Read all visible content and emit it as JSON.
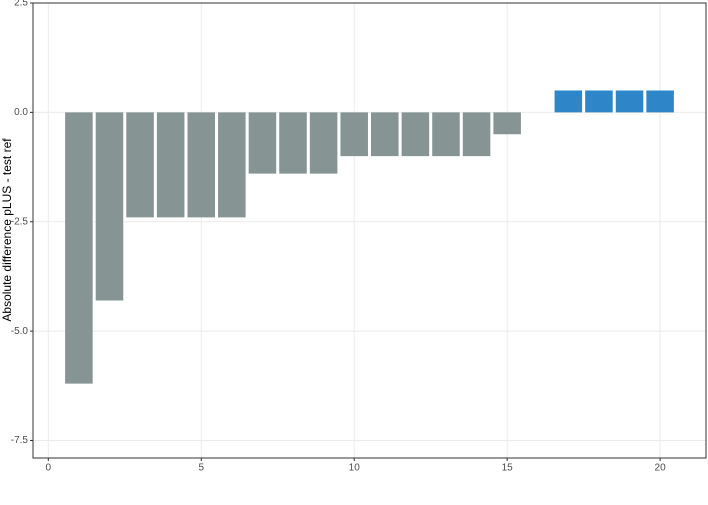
{
  "chart_data": {
    "type": "bar",
    "y_label": "Absolute difference pLUS - test ref",
    "x": [
      1,
      2,
      3,
      4,
      5,
      6,
      7,
      8,
      9,
      10,
      11,
      12,
      13,
      14,
      15,
      16,
      17,
      18,
      19,
      20
    ],
    "values": [
      -6.2,
      -4.3,
      -2.4,
      -2.4,
      -2.4,
      -2.4,
      -1.4,
      -1.4,
      -1.4,
      -1.0,
      -1.0,
      -1.0,
      -1.0,
      -1.0,
      -0.5,
      null,
      0.5,
      0.5,
      0.5,
      0.5
    ],
    "colors": [
      "#879494",
      "#879494",
      "#879494",
      "#879494",
      "#879494",
      "#879494",
      "#879494",
      "#879494",
      "#879494",
      "#879494",
      "#879494",
      "#879494",
      "#879494",
      "#879494",
      "#879494",
      "#879494",
      "#2e86c8",
      "#2e86c8",
      "#2e86c8",
      "#2e86c8"
    ],
    "xlim": [
      -0.5,
      21.5
    ],
    "xticks": [
      0,
      5,
      10,
      15,
      20
    ],
    "ylim": [
      -7.9,
      2.5
    ],
    "yticks": [
      2.5,
      {
        "value": 0,
        "label": "0.0"
      },
      -2.5,
      {
        "value": -5,
        "label": "-5.0"
      },
      -7.5
    ],
    "grid": true
  }
}
